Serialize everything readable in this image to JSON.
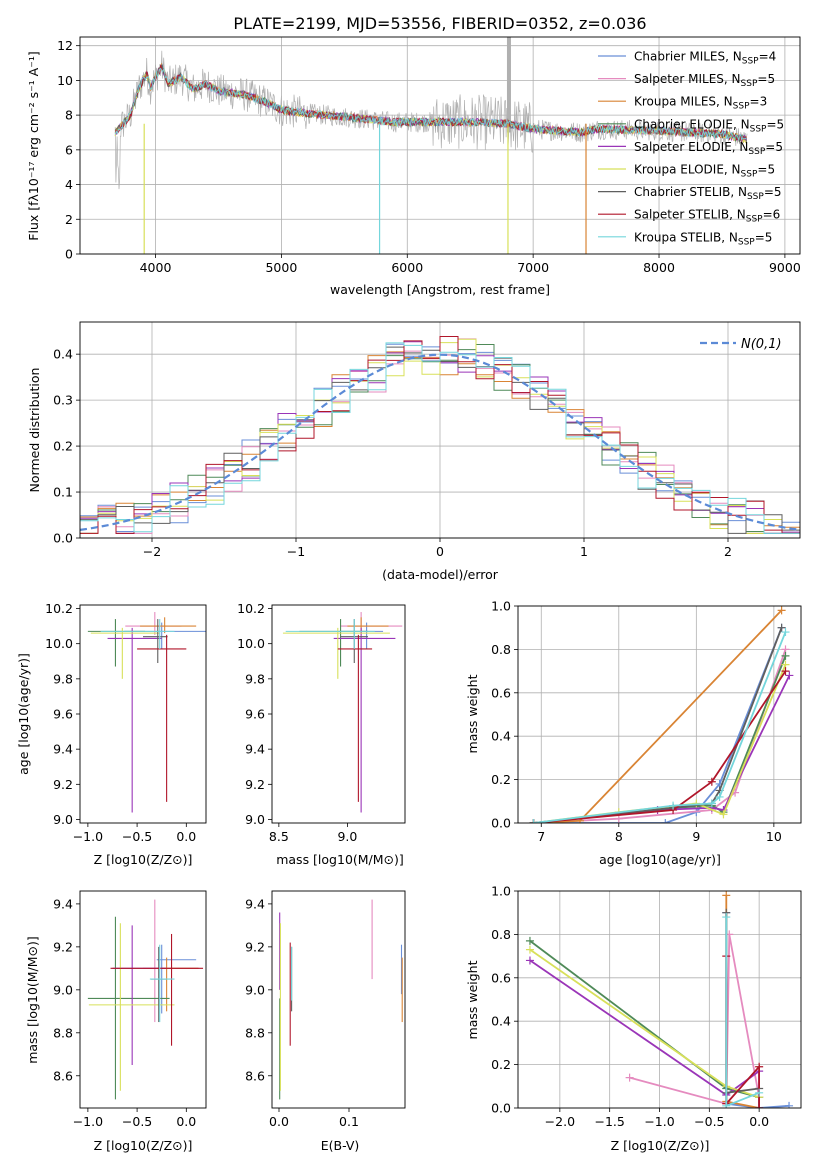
{
  "figure_title": "PLATE=2199, MJD=53556, FIBERID=0352, z=0.036",
  "colors": {
    "spectrum": "#b0b0b0",
    "grid": "#b0b0b0",
    "normal": "#5b8ad6"
  },
  "models": [
    {
      "name": "Chabrier MILES, N",
      "sub": "SSP",
      "n": "=4",
      "color": "#6a8fd8"
    },
    {
      "name": "Salpeter MILES, N",
      "sub": "SSP",
      "n": "=5",
      "color": "#e58bbf"
    },
    {
      "name": "Kroupa MILES, N",
      "sub": "SSP",
      "n": "=3",
      "color": "#d98434"
    },
    {
      "name": "Chabrier ELODIE, N",
      "sub": "SSP",
      "n": "=5",
      "color": "#4f8a58"
    },
    {
      "name": "Salpeter ELODIE, N",
      "sub": "SSP",
      "n": "=5",
      "color": "#9a35b8"
    },
    {
      "name": "Kroupa ELODIE, N",
      "sub": "SSP",
      "n": "=5",
      "color": "#d8e05a"
    },
    {
      "name": "Chabrier STELIB, N",
      "sub": "SSP",
      "n": "=5",
      "color": "#5f5f5f"
    },
    {
      "name": "Salpeter STELIB, N",
      "sub": "SSP",
      "n": "=6",
      "color": "#b0162a"
    },
    {
      "name": "Kroupa STELIB, N",
      "sub": "SSP",
      "n": "=5",
      "color": "#74d6dc"
    }
  ],
  "chart_data": [
    {
      "id": "spectrum",
      "type": "line",
      "xlabel": "wavelength [Angstrom, rest frame]",
      "ylabel": "Flux [f",
      "ylabel_full": "Flux [fλ10⁻¹⁷ erg cm⁻² s⁻¹ A⁻¹]",
      "xlim": [
        3400,
        9120
      ],
      "ylim": [
        0,
        12.5
      ],
      "xticks": [
        4000,
        5000,
        6000,
        7000,
        8000,
        9000
      ],
      "yticks": [
        0,
        2,
        4,
        6,
        8,
        10,
        12
      ],
      "spectrum_anchor_points": [
        [
          3680,
          7.0
        ],
        [
          3730,
          7.4
        ],
        [
          3800,
          8.0
        ],
        [
          3870,
          9.6
        ],
        [
          3930,
          10.4
        ],
        [
          3960,
          9.6
        ],
        [
          4000,
          10.2
        ],
        [
          4050,
          10.8
        ],
        [
          4100,
          9.8
        ],
        [
          4200,
          10.2
        ],
        [
          4300,
          9.5
        ],
        [
          4400,
          9.8
        ],
        [
          4500,
          9.4
        ],
        [
          4700,
          9.2
        ],
        [
          4861,
          8.8
        ],
        [
          5000,
          8.3
        ],
        [
          5200,
          8.1
        ],
        [
          5500,
          7.9
        ],
        [
          5890,
          7.6
        ],
        [
          6200,
          7.6
        ],
        [
          6563,
          7.6
        ],
        [
          6800,
          7.5
        ],
        [
          7000,
          7.2
        ],
        [
          7400,
          7.0
        ],
        [
          7500,
          7.2
        ],
        [
          8000,
          7.1
        ],
        [
          8500,
          6.9
        ],
        [
          8700,
          6.6
        ]
      ],
      "spike": {
        "x": 6800,
        "y": 12.5
      }
    },
    {
      "id": "residual-histogram",
      "type": "histogram",
      "xlabel": "(data-model)/error",
      "ylabel": "Normed distribution",
      "xlim": [
        -2.5,
        2.5
      ],
      "ylim": [
        0,
        0.47
      ],
      "xticks": [
        -2,
        -1,
        0,
        1,
        2
      ],
      "yticks": [
        0.0,
        0.1,
        0.2,
        0.3,
        0.4
      ],
      "legend": "N(0,1)",
      "normal": {
        "mean": 0,
        "sigma": 1
      }
    },
    {
      "id": "age-vs-Z",
      "type": "errorbar",
      "xlabel": "Z [log10(Z/Z⊙)]",
      "ylabel": "age  [log10(age/yr)]",
      "xlim": [
        -1.08,
        0.2
      ],
      "ylim": [
        8.98,
        10.22
      ],
      "xticks": [
        -1.0,
        -0.5,
        0.0
      ],
      "yticks": [
        9.0,
        9.2,
        9.4,
        9.6,
        9.8,
        10.0,
        10.2
      ],
      "points": [
        {
          "x": -0.25,
          "xerr": [
            0.38,
            0.45
          ],
          "y": 10.07,
          "yerr": [
            0.1,
            0.05
          ]
        },
        {
          "x": -0.32,
          "xerr": [
            0.3,
            0.27
          ],
          "y": 10.1,
          "yerr": [
            0.05,
            0.08
          ]
        },
        {
          "x": -0.22,
          "xerr": [
            0.25,
            0.32
          ],
          "y": 10.1,
          "yerr": [
            0.04,
            0.05
          ]
        },
        {
          "x": -0.72,
          "xerr": [
            0.28,
            0.3
          ],
          "y": 10.07,
          "yerr": [
            0.2,
            0.07
          ]
        },
        {
          "x": -0.55,
          "xerr": [
            0.25,
            0.3
          ],
          "y": 10.03,
          "yerr": [
            0.99,
            0.06
          ]
        },
        {
          "x": -0.65,
          "xerr": [
            0.32,
            0.38
          ],
          "y": 10.06,
          "yerr": [
            0.26,
            0.03
          ]
        },
        {
          "x": -0.29,
          "xerr": [
            0.15,
            0.1
          ],
          "y": 10.04,
          "yerr": [
            0.15,
            0.1
          ]
        },
        {
          "x": -0.2,
          "xerr": [
            0.3,
            0.2
          ],
          "y": 9.97,
          "yerr": [
            0.87,
            0.08
          ]
        },
        {
          "x": -0.27,
          "xerr": [
            0.6,
            0.15
          ],
          "y": 10.07,
          "yerr": [
            0.1,
            0.07
          ]
        }
      ]
    },
    {
      "id": "age-vs-mass",
      "type": "errorbar",
      "xlabel": "mass [log10(M/M⊙)]",
      "ylabel": "",
      "xlim": [
        8.45,
        9.42
      ],
      "ylim": [
        8.98,
        10.22
      ],
      "xticks": [
        8.5,
        9.0
      ],
      "yticks": [
        9.0,
        9.2,
        9.4,
        9.6,
        9.8,
        10.0,
        10.2
      ],
      "points": [
        {
          "x": 9.14,
          "xerr": [
            0.2,
            0.12
          ],
          "y": 10.07,
          "yerr": [
            0.1,
            0.05
          ]
        },
        {
          "x": 9.1,
          "xerr": [
            0.15,
            0.3
          ],
          "y": 10.1,
          "yerr": [
            0.05,
            0.08
          ]
        },
        {
          "x": 9.1,
          "xerr": [
            0.1,
            0.2
          ],
          "y": 10.1,
          "yerr": [
            0.04,
            0.05
          ]
        },
        {
          "x": 8.95,
          "xerr": [
            0.3,
            0.2
          ],
          "y": 10.07,
          "yerr": [
            0.2,
            0.07
          ]
        },
        {
          "x": 9.1,
          "xerr": [
            0.2,
            0.25
          ],
          "y": 10.03,
          "yerr": [
            0.99,
            0.06
          ]
        },
        {
          "x": 8.93,
          "xerr": [
            0.4,
            0.38
          ],
          "y": 10.06,
          "yerr": [
            0.26,
            0.03
          ]
        },
        {
          "x": 9.05,
          "xerr": [
            0.1,
            0.1
          ],
          "y": 10.04,
          "yerr": [
            0.15,
            0.1
          ]
        },
        {
          "x": 9.08,
          "xerr": [
            0.15,
            0.1
          ],
          "y": 9.97,
          "yerr": [
            0.87,
            0.08
          ]
        },
        {
          "x": 9.05,
          "xerr": [
            0.5,
            0.15
          ],
          "y": 10.07,
          "yerr": [
            0.1,
            0.07
          ]
        }
      ]
    },
    {
      "id": "mass-weight-vs-age",
      "type": "line",
      "xlabel": "age  [log10(age/yr)]",
      "ylabel": "mass weight",
      "xlim": [
        6.7,
        10.35
      ],
      "ylim": [
        0,
        1.0
      ],
      "xticks": [
        7,
        8,
        9,
        10
      ],
      "yticks": [
        0.0,
        0.2,
        0.4,
        0.6,
        0.8,
        1.0
      ],
      "series": [
        {
          "points": [
            [
              6.9,
              0.0
            ],
            [
              8.6,
              0.0
            ],
            [
              9.0,
              0.05
            ],
            [
              9.3,
              0.18
            ],
            [
              10.1,
              0.9
            ]
          ]
        },
        {
          "points": [
            [
              6.9,
              0.0
            ],
            [
              8.0,
              0.02
            ],
            [
              9.2,
              0.06
            ],
            [
              9.5,
              0.14
            ],
            [
              10.15,
              0.8
            ]
          ]
        },
        {
          "points": [
            [
              6.9,
              0.0
            ],
            [
              7.5,
              0.01
            ],
            [
              10.1,
              0.98
            ]
          ]
        },
        {
          "points": [
            [
              6.9,
              0.0
            ],
            [
              8.7,
              0.07
            ],
            [
              9.2,
              0.08
            ],
            [
              9.35,
              0.05
            ],
            [
              10.15,
              0.77
            ]
          ]
        },
        {
          "points": [
            [
              6.9,
              0.0
            ],
            [
              8.5,
              0.06
            ],
            [
              9.2,
              0.07
            ],
            [
              9.35,
              0.06
            ],
            [
              10.2,
              0.68
            ]
          ]
        },
        {
          "points": [
            [
              6.9,
              0.0
            ],
            [
              8.0,
              0.05
            ],
            [
              9.0,
              0.09
            ],
            [
              9.35,
              0.04
            ],
            [
              10.15,
              0.73
            ]
          ]
        },
        {
          "points": [
            [
              6.9,
              0.0
            ],
            [
              8.7,
              0.07
            ],
            [
              9.2,
              0.09
            ],
            [
              9.3,
              0.15
            ],
            [
              10.1,
              0.9
            ]
          ]
        },
        {
          "points": [
            [
              6.9,
              0.0
            ],
            [
              8.7,
              0.06
            ],
            [
              9.2,
              0.19
            ],
            [
              10.15,
              0.7
            ]
          ]
        },
        {
          "points": [
            [
              6.9,
              0.0
            ],
            [
              8.7,
              0.08
            ],
            [
              9.2,
              0.09
            ],
            [
              9.3,
              0.12
            ],
            [
              10.15,
              0.88
            ]
          ]
        }
      ]
    },
    {
      "id": "mass-vs-Z",
      "type": "errorbar",
      "xlabel": "Z [log10(Z/Z⊙)]",
      "ylabel": "mass [log10(M/M⊙)]",
      "xlim": [
        -1.08,
        0.2
      ],
      "ylim": [
        8.45,
        9.46
      ],
      "xticks": [
        -1.0,
        -0.5,
        0.0
      ],
      "yticks": [
        8.6,
        8.8,
        9.0,
        9.2,
        9.4
      ],
      "points": [
        {
          "x": -0.25,
          "xerr": [
            0.05,
            0.35
          ],
          "y": 9.14,
          "yerr": [
            0.25,
            0.07
          ]
        },
        {
          "x": -0.32,
          "xerr": [
            0.12,
            0.45
          ],
          "y": 9.1,
          "yerr": [
            0.25,
            0.32
          ]
        },
        {
          "x": -0.2,
          "xerr": [
            0.1,
            0.32
          ],
          "y": 9.1,
          "yerr": [
            0.2,
            0.05
          ]
        },
        {
          "x": -0.72,
          "xerr": [
            0.28,
            0.55
          ],
          "y": 8.96,
          "yerr": [
            0.47,
            0.38
          ]
        },
        {
          "x": -0.55,
          "xerr": [
            0.2,
            0.35
          ],
          "y": 9.1,
          "yerr": [
            0.45,
            0.2
          ]
        },
        {
          "x": -0.67,
          "xerr": [
            0.32,
            0.55
          ],
          "y": 8.93,
          "yerr": [
            0.4,
            0.38
          ]
        },
        {
          "x": -0.28,
          "xerr": [
            0.08,
            0.08
          ],
          "y": 9.05,
          "yerr": [
            0.2,
            0.15
          ]
        },
        {
          "x": -0.15,
          "xerr": [
            0.62,
            0.32
          ],
          "y": 9.1,
          "yerr": [
            0.36,
            0.16
          ]
        },
        {
          "x": -0.27,
          "xerr": [
            0.1,
            0.15
          ],
          "y": 9.05,
          "yerr": [
            0.2,
            0.16
          ]
        }
      ]
    },
    {
      "id": "mass-vs-EBV",
      "type": "errorbar",
      "xlabel": "E(B-V)",
      "ylabel": "",
      "xlim": [
        -0.01,
        0.18
      ],
      "ylim": [
        8.45,
        9.46
      ],
      "xticks": [
        0.0,
        0.1
      ],
      "yticks": [
        8.6,
        8.8,
        9.0,
        9.2,
        9.4
      ],
      "points": [
        {
          "x": 0.175,
          "xerr": [
            0,
            0
          ],
          "y": 9.14,
          "yerr": [
            0.16,
            0.07
          ]
        },
        {
          "x": 0.133,
          "xerr": [
            0,
            0
          ],
          "y": 9.1,
          "yerr": [
            0.05,
            0.32
          ]
        },
        {
          "x": 0.176,
          "xerr": [
            0,
            0
          ],
          "y": 9.1,
          "yerr": [
            0.25,
            0.05
          ]
        },
        {
          "x": 0.001,
          "xerr": [
            0,
            0
          ],
          "y": 8.96,
          "yerr": [
            0.47,
            0.0
          ]
        },
        {
          "x": 0.001,
          "xerr": [
            0,
            0
          ],
          "y": 9.1,
          "yerr": [
            0.1,
            0.26
          ]
        },
        {
          "x": 0.002,
          "xerr": [
            0,
            0
          ],
          "y": 8.93,
          "yerr": [
            0.4,
            0.38
          ]
        },
        {
          "x": 0.018,
          "xerr": [
            0,
            0
          ],
          "y": 9.05,
          "yerr": [
            0.15,
            0.15
          ]
        },
        {
          "x": 0.016,
          "xerr": [
            0,
            0
          ],
          "y": 9.1,
          "yerr": [
            0.36,
            0.12
          ]
        },
        {
          "x": 0.018,
          "xerr": [
            0,
            0
          ],
          "y": 9.05,
          "yerr": [
            0.1,
            0.15
          ]
        }
      ]
    },
    {
      "id": "mass-weight-vs-Z",
      "type": "line",
      "xlabel": "Z [log10(Z/Z⊙)]",
      "ylabel": "mass weight",
      "xlim": [
        -2.42,
        0.42
      ],
      "ylim": [
        0,
        1.0
      ],
      "xticks": [
        -2.0,
        -1.5,
        -1.0,
        -0.5,
        0.0
      ],
      "yticks": [
        0.0,
        0.2,
        0.4,
        0.6,
        0.8,
        1.0
      ],
      "series": [
        {
          "points": [
            [
              -0.33,
              0.9
            ],
            [
              -0.33,
              0.02
            ],
            [
              0.0,
              0.0
            ],
            [
              0.3,
              0.01
            ]
          ]
        },
        {
          "points": [
            [
              -1.3,
              0.14
            ],
            [
              -0.33,
              0.02
            ],
            [
              -0.3,
              0.8
            ],
            [
              0.0,
              0.05
            ]
          ]
        },
        {
          "points": [
            [
              -0.33,
              0.98
            ],
            [
              -0.33,
              0.03
            ],
            [
              0.0,
              0.0
            ]
          ]
        },
        {
          "points": [
            [
              -2.3,
              0.77
            ],
            [
              -0.33,
              0.09
            ],
            [
              0.0,
              0.05
            ],
            [
              0.0,
              0.0
            ]
          ]
        },
        {
          "points": [
            [
              -2.3,
              0.68
            ],
            [
              -0.33,
              0.06
            ],
            [
              0.0,
              0.17
            ],
            [
              0.0,
              0.0
            ]
          ]
        },
        {
          "points": [
            [
              -2.3,
              0.73
            ],
            [
              -0.33,
              0.1
            ],
            [
              0.0,
              0.05
            ]
          ]
        },
        {
          "points": [
            [
              -0.33,
              0.9
            ],
            [
              -0.33,
              0.07
            ],
            [
              0.0,
              0.09
            ]
          ]
        },
        {
          "points": [
            [
              -0.33,
              0.7
            ],
            [
              -0.33,
              0.02
            ],
            [
              0.0,
              0.19
            ],
            [
              0.0,
              0.0
            ]
          ]
        },
        {
          "points": [
            [
              -0.33,
              0.88
            ],
            [
              -0.33,
              0.01
            ],
            [
              0.0,
              0.07
            ]
          ]
        }
      ]
    }
  ]
}
